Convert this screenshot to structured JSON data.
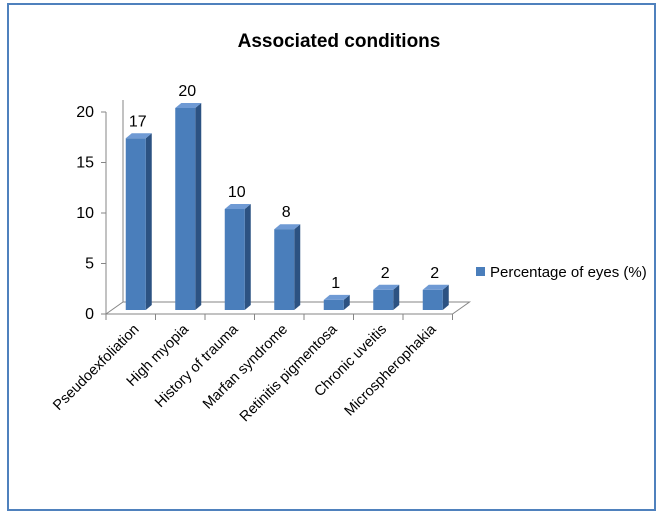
{
  "chart_data": {
    "type": "bar",
    "title": "Associated conditions",
    "xlabel": "",
    "ylabel": "",
    "categories": [
      "Pseudoexfoliation",
      "High myopia",
      "History of trauma",
      "Marfan syndrome",
      "Retinitis pigmentosa",
      "Chronic uveitis",
      "Microspherophakia"
    ],
    "series": [
      {
        "name": "Percentage of eyes (%)",
        "values": [
          17,
          20,
          10,
          8,
          1,
          2,
          2
        ]
      }
    ],
    "yticks": [
      0,
      5,
      10,
      15,
      20
    ],
    "ylim": [
      0,
      20
    ],
    "grid": false,
    "legend": "right",
    "bar_3d": true,
    "colors": {
      "bar_front": "#4a7ebb",
      "bar_side": "#2c5282",
      "bar_top": "#6f9ad4",
      "border": "#4f81bd",
      "axis": "#868686"
    }
  }
}
